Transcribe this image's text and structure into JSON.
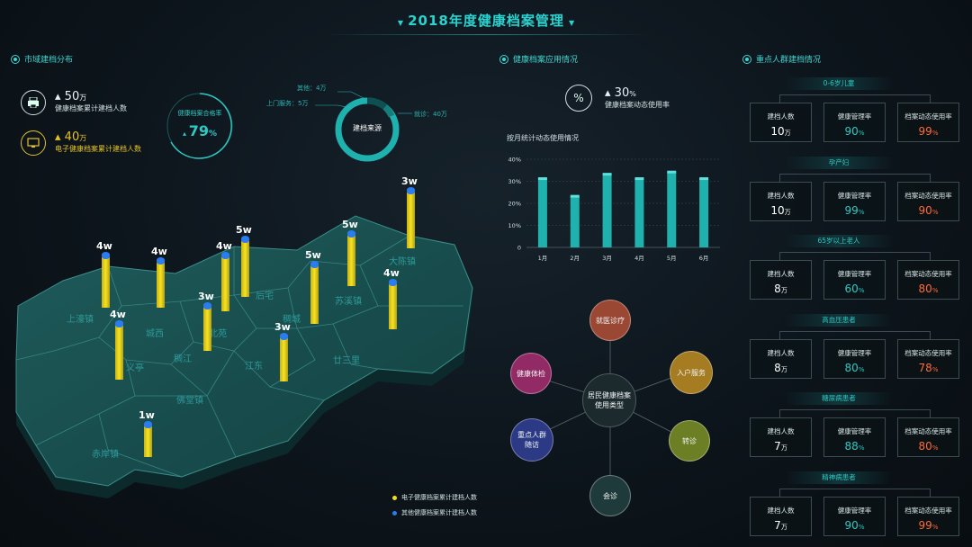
{
  "header": {
    "title": "2018年度健康档案管理"
  },
  "left": {
    "section_title": "市域建档分布",
    "stats": [
      {
        "value": "50",
        "unit": "万",
        "label": "健康档案累计建档人数",
        "icon": "printer-icon"
      },
      {
        "value": "40",
        "unit": "万",
        "label": "电子健康档案累计建档人数",
        "icon": "monitor-icon"
      }
    ],
    "qualified": {
      "label": "健康档案合格率",
      "value": "79",
      "unit": "%"
    },
    "source": {
      "center": "建档来源",
      "items": [
        {
          "label": "其他：4万"
        },
        {
          "label": "上门服务：5万"
        },
        {
          "label": "就诊：40万"
        }
      ]
    },
    "map": {
      "regions": [
        "上濠镇",
        "城西",
        "北苑",
        "后宅",
        "稠城",
        "苏溪镇",
        "大陈镇",
        "义亭",
        "稠江",
        "江东",
        "廿三里",
        "佛堂镇",
        "赤岸镇"
      ],
      "bars": [
        {
          "label": "4w"
        },
        {
          "label": "4w"
        },
        {
          "label": "4w"
        },
        {
          "label": "5w"
        },
        {
          "label": "3w"
        },
        {
          "label": "5w"
        },
        {
          "label": "5w"
        },
        {
          "label": "3w"
        },
        {
          "label": "4w"
        },
        {
          "label": "3w"
        },
        {
          "label": "4w"
        },
        {
          "label": "1w"
        }
      ]
    },
    "legend": [
      {
        "label": "电子健康档案累计建档人数",
        "color": "#f2dd1f"
      },
      {
        "label": "其他健康档案累计建档人数",
        "color": "#2a7cf0"
      }
    ]
  },
  "middle": {
    "section_title": "健康档案应用情况",
    "usage": {
      "icon": "percent-icon",
      "value": "30",
      "unit": "%",
      "label": "健康档案动态使用率"
    },
    "chart_title": "按月统计动态使用情况",
    "chart_data": {
      "type": "bar",
      "categories": [
        "1月",
        "2月",
        "3月",
        "4月",
        "5月",
        "6月"
      ],
      "values": [
        31,
        23,
        33,
        31,
        34,
        31
      ],
      "ylim": [
        0,
        40
      ],
      "yticks": [
        "0",
        "10%",
        "20%",
        "30%",
        "40%"
      ],
      "grid": true,
      "color": "#1fb1ad"
    },
    "usage_types": {
      "center": "居民健康档案使用类型",
      "items": [
        {
          "label": "就医诊疗",
          "color": "#9a4833"
        },
        {
          "label": "入户服务",
          "color": "#a57c21"
        },
        {
          "label": "转诊",
          "color": "#6d7f25"
        },
        {
          "label": "会诊",
          "color": "#1f3a3a"
        },
        {
          "label": "重点人群随访",
          "color": "#2c3a85"
        },
        {
          "label": "健康体检",
          "color": "#922a66"
        }
      ]
    }
  },
  "right": {
    "section_title": "重点人群建档情况",
    "groups": [
      {
        "name": "0-6岁儿童",
        "cards": [
          {
            "label": "建档人数",
            "value": "10",
            "unit": "万",
            "color": "#ffffff"
          },
          {
            "label": "健康管理率",
            "value": "90",
            "unit": "%",
            "color": "#2fc9c4"
          },
          {
            "label": "档案动态使用率",
            "value": "99",
            "unit": "%",
            "color": "#ff6a36"
          }
        ]
      },
      {
        "name": "孕产妇",
        "cards": [
          {
            "label": "建档人数",
            "value": "10",
            "unit": "万",
            "color": "#ffffff"
          },
          {
            "label": "健康管理率",
            "value": "99",
            "unit": "%",
            "color": "#2fc9c4"
          },
          {
            "label": "档案动态使用率",
            "value": "90",
            "unit": "%",
            "color": "#ff6a36"
          }
        ]
      },
      {
        "name": "65岁以上老人",
        "cards": [
          {
            "label": "建档人数",
            "value": "8",
            "unit": "万",
            "color": "#ffffff"
          },
          {
            "label": "健康管理率",
            "value": "60",
            "unit": "%",
            "color": "#2fc9c4"
          },
          {
            "label": "档案动态使用率",
            "value": "80",
            "unit": "%",
            "color": "#ff6a36"
          }
        ]
      },
      {
        "name": "高血压患者",
        "cards": [
          {
            "label": "建档人数",
            "value": "8",
            "unit": "万",
            "color": "#ffffff"
          },
          {
            "label": "健康管理率",
            "value": "80",
            "unit": "%",
            "color": "#2fc9c4"
          },
          {
            "label": "档案动态使用率",
            "value": "78",
            "unit": "%",
            "color": "#ff6a36"
          }
        ]
      },
      {
        "name": "糖尿病患者",
        "cards": [
          {
            "label": "建档人数",
            "value": "7",
            "unit": "万",
            "color": "#ffffff"
          },
          {
            "label": "健康管理率",
            "value": "88",
            "unit": "%",
            "color": "#2fc9c4"
          },
          {
            "label": "档案动态使用率",
            "value": "80",
            "unit": "%",
            "color": "#ff6a36"
          }
        ]
      },
      {
        "name": "精神病患者",
        "cards": [
          {
            "label": "建档人数",
            "value": "7",
            "unit": "万",
            "color": "#ffffff"
          },
          {
            "label": "健康管理率",
            "value": "90",
            "unit": "%",
            "color": "#2fc9c4"
          },
          {
            "label": "档案动态使用率",
            "value": "99",
            "unit": "%",
            "color": "#ff6a36"
          }
        ]
      }
    ]
  }
}
